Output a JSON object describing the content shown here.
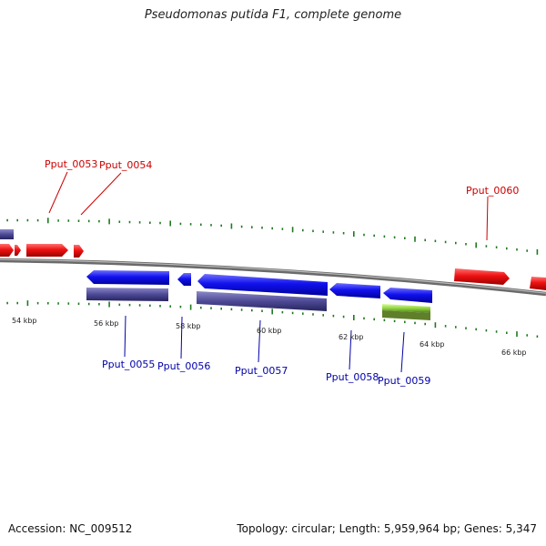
{
  "title": "Pseudomonas putida F1, complete genome",
  "footer": {
    "accession": "Accession: NC_009512",
    "topology": "Topology: circular; Length: 5,959,964 bp; Genes: 5,347"
  },
  "ticks": {
    "labels": [
      "54 kbp",
      "56 kbp",
      "58 kbp",
      "60 kbp",
      "62 kbp",
      "64 kbp",
      "66 kbp"
    ],
    "color": "#1f7a1f"
  },
  "colors": {
    "forward": "#ee1111",
    "reverse": "#1111ee",
    "rna": "#3f3d86",
    "green": "#8fd13f",
    "backbone": "#888888",
    "label_top": "#cc0000",
    "label_bottom": "#0000aa"
  },
  "genes": [
    {
      "locus": "Pput_0053",
      "strand": "+",
      "labeled": true
    },
    {
      "locus": "Pput_0054",
      "strand": "+",
      "labeled": true
    },
    {
      "locus": "Pput_0055",
      "strand": "-",
      "labeled": true
    },
    {
      "locus": "Pput_0056",
      "strand": "-",
      "labeled": true
    },
    {
      "locus": "Pput_0057",
      "strand": "-",
      "labeled": true
    },
    {
      "locus": "Pput_0058",
      "strand": "-",
      "labeled": true
    },
    {
      "locus": "Pput_0059",
      "strand": "-",
      "labeled": true
    },
    {
      "locus": "Pput_0060",
      "strand": "+",
      "labeled": true
    }
  ]
}
